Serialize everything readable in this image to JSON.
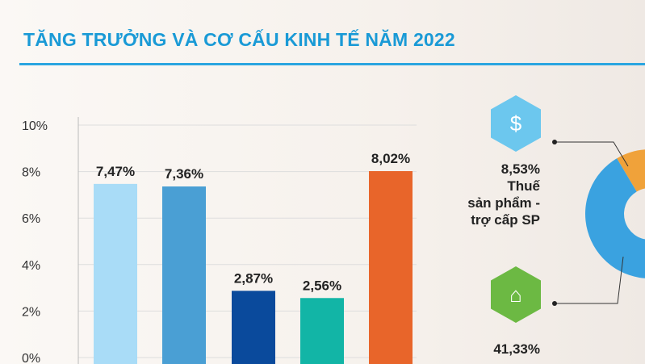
{
  "title": "TĂNG TRƯỞNG VÀ CƠ CẤU KINH TẾ NĂM 2022",
  "chart_data": [
    {
      "type": "bar",
      "title": "",
      "categories": [
        "",
        "",
        "",
        "",
        ""
      ],
      "values": [
        7.47,
        7.36,
        2.87,
        2.56,
        8.02
      ],
      "labels": [
        "7,47%",
        "7,36%",
        "2,87%",
        "2,56%",
        "8,02%"
      ],
      "colors": [
        "#a9dcf7",
        "#4a9fd4",
        "#0a4a9c",
        "#12b5a6",
        "#e8652a"
      ],
      "yticks": [
        "0%",
        "2%",
        "4%",
        "6%",
        "8%",
        "10%"
      ],
      "ylim": [
        0,
        10
      ],
      "grid": true
    },
    {
      "type": "pie",
      "title": "",
      "slices": [
        {
          "label": "Thuế sản phẩm - trợ cấp SP",
          "value": 8.53,
          "value_label": "8,53%",
          "color": "#f0a23a"
        },
        {
          "label": "",
          "value": 41.33,
          "value_label": "41,33%",
          "color": "#3aa2e0"
        }
      ]
    }
  ],
  "side": {
    "tax": {
      "pct": "8,53%",
      "line1": "Thuế",
      "line2": "sản phẩm -",
      "line3": "trợ cấp SP",
      "icon": "tax-money-icon"
    },
    "service": {
      "pct": "41,33%",
      "icon": "service-counter-icon"
    }
  }
}
